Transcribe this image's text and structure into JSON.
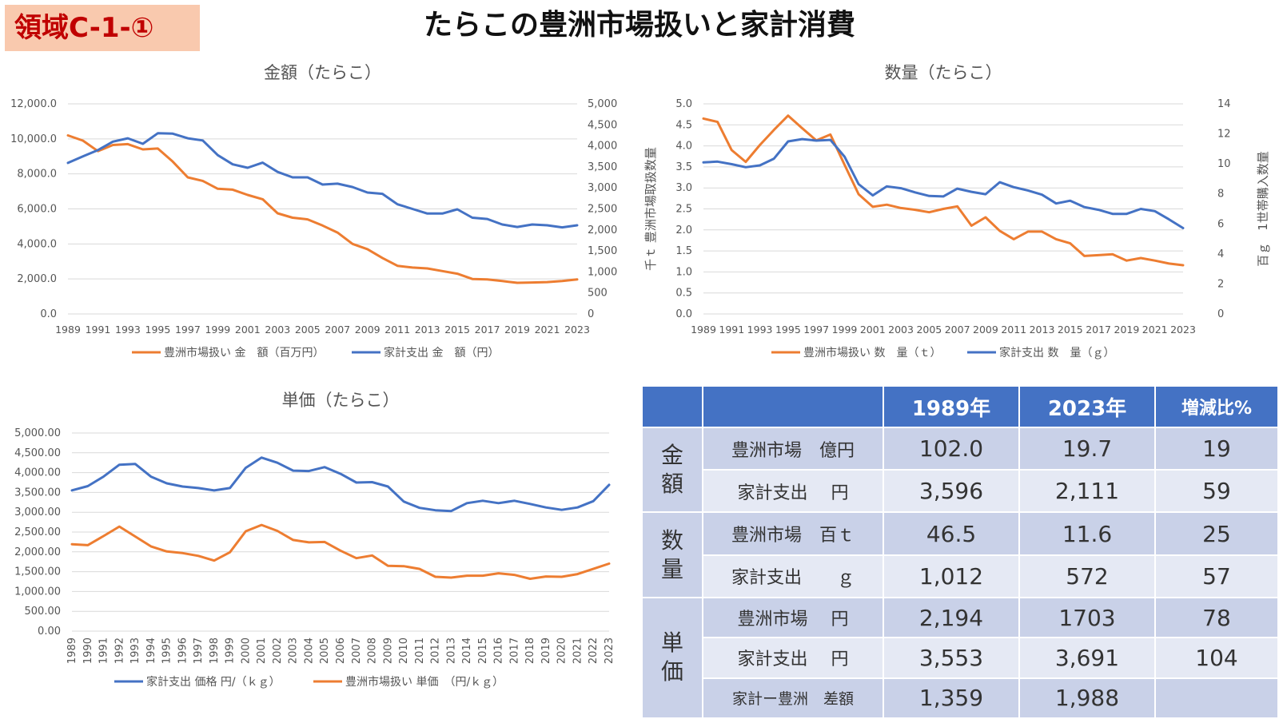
{
  "header": {
    "tag": "領域C-1-①",
    "title": "たらこの豊洲市場扱いと家計消費"
  },
  "colors": {
    "orange": "#ed7d31",
    "blue": "#4472c4",
    "tag_bg": "#f9c9ae",
    "tag_text": "#c00000",
    "header_bg": "#4472c4"
  },
  "chart_data": [
    {
      "type": "line",
      "title": "金額（たらこ）",
      "x_tick_labels": [
        "1989",
        "1991",
        "1993",
        "1995",
        "1997",
        "1999",
        "2001",
        "2003",
        "2005",
        "2007",
        "2009",
        "2011",
        "2013",
        "2015",
        "2017",
        "2019",
        "2021",
        "2023"
      ],
      "y_left_ticks": [
        "0.0",
        "2,000.0",
        "4,000.0",
        "6,000.0",
        "8,000.0",
        "10,000.0",
        "12,000.0"
      ],
      "y_right_ticks": [
        "0",
        "500",
        "1,000",
        "1,500",
        "2,000",
        "2,500",
        "3,000",
        "3,500",
        "4,000",
        "4,500",
        "5,000"
      ],
      "ylim_left": [
        0,
        12000
      ],
      "ylim_right": [
        0,
        5000
      ],
      "x": [
        1989,
        1990,
        1991,
        1992,
        1993,
        1994,
        1995,
        1996,
        1997,
        1998,
        1999,
        2000,
        2001,
        2002,
        2003,
        2004,
        2005,
        2006,
        2007,
        2008,
        2009,
        2010,
        2011,
        2012,
        2013,
        2014,
        2015,
        2016,
        2017,
        2018,
        2019,
        2020,
        2021,
        2022,
        2023
      ],
      "series": [
        {
          "name": "豊洲市場扱い 金　額（百万円）",
          "axis": "left",
          "color": "#ed7d31",
          "values": [
            10200,
            9900,
            9300,
            9650,
            9700,
            9400,
            9450,
            8700,
            7800,
            7600,
            7150,
            7100,
            6800,
            6550,
            5750,
            5500,
            5400,
            5050,
            4650,
            4000,
            3700,
            3200,
            2750,
            2650,
            2600,
            2450,
            2300,
            2000,
            1970,
            1880,
            1780,
            1800,
            1820,
            1880,
            1970
          ]
        },
        {
          "name": "家計支出 金　額（円）",
          "axis": "right",
          "color": "#4472c4",
          "values": [
            3596,
            3750,
            3900,
            4100,
            4180,
            4050,
            4300,
            4290,
            4180,
            4130,
            3780,
            3560,
            3480,
            3600,
            3380,
            3250,
            3250,
            3080,
            3100,
            3020,
            2890,
            2860,
            2610,
            2500,
            2390,
            2390,
            2490,
            2290,
            2260,
            2130,
            2070,
            2130,
            2110,
            2060,
            2111
          ]
        }
      ]
    },
    {
      "type": "line",
      "title": "数量（たらこ）",
      "x_tick_labels": [
        "1989",
        "1991",
        "1993",
        "1995",
        "1997",
        "1999",
        "2001",
        "2003",
        "2005",
        "2007",
        "2009",
        "2011",
        "2013",
        "2015",
        "2017",
        "2019",
        "2021",
        "2023"
      ],
      "y_left_ticks": [
        "0.0",
        "0.5",
        "1.0",
        "1.5",
        "2.0",
        "2.5",
        "3.0",
        "3.5",
        "4.0",
        "4.5",
        "5.0"
      ],
      "y_right_ticks": [
        "0",
        "2",
        "4",
        "6",
        "8",
        "10",
        "12",
        "14"
      ],
      "ylim_left": [
        0,
        5
      ],
      "ylim_right": [
        0,
        14
      ],
      "ylabel_left": "千ｔ 豊洲市場取扱数量",
      "ylabel_right": "百ｇ　1世帯購入数量",
      "x": [
        1989,
        1990,
        1991,
        1992,
        1993,
        1994,
        1995,
        1996,
        1997,
        1998,
        1999,
        2000,
        2001,
        2002,
        2003,
        2004,
        2005,
        2006,
        2007,
        2008,
        2009,
        2010,
        2011,
        2012,
        2013,
        2014,
        2015,
        2016,
        2017,
        2018,
        2019,
        2020,
        2021,
        2022,
        2023
      ],
      "series": [
        {
          "name": "豊洲市場扱い 数　量（ｔ）",
          "axis": "left",
          "color": "#ed7d31",
          "values": [
            4.65,
            4.57,
            3.9,
            3.62,
            4.02,
            4.38,
            4.72,
            4.42,
            4.13,
            4.27,
            3.55,
            2.85,
            2.55,
            2.6,
            2.52,
            2.48,
            2.42,
            2.5,
            2.56,
            2.1,
            2.3,
            1.98,
            1.78,
            1.96,
            1.96,
            1.78,
            1.68,
            1.38,
            1.4,
            1.42,
            1.27,
            1.33,
            1.27,
            1.2,
            1.16
          ]
        },
        {
          "name": "家計支出 数　量（ｇ）",
          "axis": "right",
          "color": "#4472c4",
          "values": [
            10.1,
            10.15,
            9.98,
            9.78,
            9.9,
            10.35,
            11.5,
            11.65,
            11.55,
            11.6,
            10.48,
            8.65,
            7.9,
            8.5,
            8.38,
            8.1,
            7.86,
            7.83,
            8.35,
            8.14,
            7.98,
            8.78,
            8.45,
            8.23,
            7.95,
            7.36,
            7.55,
            7.12,
            6.94,
            6.67,
            6.67,
            7.0,
            6.85,
            6.3,
            5.72
          ]
        }
      ]
    },
    {
      "type": "line",
      "title": "単価（たらこ）",
      "x_tick_labels": [
        "1989",
        "1990",
        "1991",
        "1992",
        "1993",
        "1994",
        "1995",
        "1996",
        "1997",
        "1998",
        "1999",
        "2000",
        "2001",
        "2002",
        "2003",
        "2004",
        "2005",
        "2006",
        "2007",
        "2008",
        "2009",
        "2010",
        "2011",
        "2012",
        "2013",
        "2014",
        "2015",
        "2016",
        "2017",
        "2018",
        "2019",
        "2020",
        "2021",
        "2022",
        "2023"
      ],
      "y_left_ticks": [
        "0.00",
        "500.00",
        "1,000.00",
        "1,500.00",
        "2,000.00",
        "2,500.00",
        "3,000.00",
        "3,500.00",
        "4,000.00",
        "4,500.00",
        "5,000.00"
      ],
      "ylim_left": [
        0,
        5000
      ],
      "x": [
        1989,
        1990,
        1991,
        1992,
        1993,
        1994,
        1995,
        1996,
        1997,
        1998,
        1999,
        2000,
        2001,
        2002,
        2003,
        2004,
        2005,
        2006,
        2007,
        2008,
        2009,
        2010,
        2011,
        2012,
        2013,
        2014,
        2015,
        2016,
        2017,
        2018,
        2019,
        2020,
        2021,
        2022,
        2023
      ],
      "series": [
        {
          "name": "家計支出 価格 円/（ｋｇ）",
          "axis": "left",
          "color": "#4472c4",
          "values": [
            3553,
            3660,
            3900,
            4200,
            4220,
            3900,
            3730,
            3650,
            3610,
            3550,
            3610,
            4120,
            4380,
            4250,
            4050,
            4040,
            4140,
            3970,
            3750,
            3760,
            3650,
            3270,
            3110,
            3050,
            3030,
            3230,
            3290,
            3230,
            3290,
            3210,
            3120,
            3060,
            3120,
            3280,
            3691
          ]
        },
        {
          "name": "豊洲市場扱い 単価　（円/ｋｇ）",
          "axis": "left",
          "color": "#ed7d31",
          "values": [
            2194,
            2170,
            2400,
            2640,
            2390,
            2140,
            2010,
            1970,
            1900,
            1780,
            1990,
            2520,
            2680,
            2530,
            2300,
            2240,
            2250,
            2030,
            1840,
            1910,
            1650,
            1640,
            1570,
            1370,
            1350,
            1400,
            1400,
            1460,
            1420,
            1320,
            1380,
            1370,
            1440,
            1570,
            1703
          ]
        }
      ]
    }
  ],
  "table": {
    "headers": [
      "",
      "",
      "1989年",
      "2023年",
      "増減比%"
    ],
    "groups": [
      "金\n額",
      "数\n量",
      "単\n価"
    ],
    "rows": [
      {
        "label": "豊洲市場　億円",
        "v1989": "102.0",
        "v2023": "19.7",
        "ratio": "19"
      },
      {
        "label": "家計支出　 円",
        "v1989": "3,596",
        "v2023": "2,111",
        "ratio": "59"
      },
      {
        "label": "豊洲市場　百ｔ",
        "v1989": "46.5",
        "v2023": "11.6",
        "ratio": "25"
      },
      {
        "label": "家計支出　　ｇ",
        "v1989": "1,012",
        "v2023": "572",
        "ratio": "57"
      },
      {
        "label": "豊洲市場　 円",
        "v1989": "2,194",
        "v2023": "1703",
        "ratio": "78"
      },
      {
        "label": "家計支出　 円",
        "v1989": "3,553",
        "v2023": "3,691",
        "ratio": "104"
      },
      {
        "label": "家計ー豊洲　差額",
        "v1989": "1,359",
        "v2023": "1,988",
        "ratio": ""
      }
    ]
  }
}
